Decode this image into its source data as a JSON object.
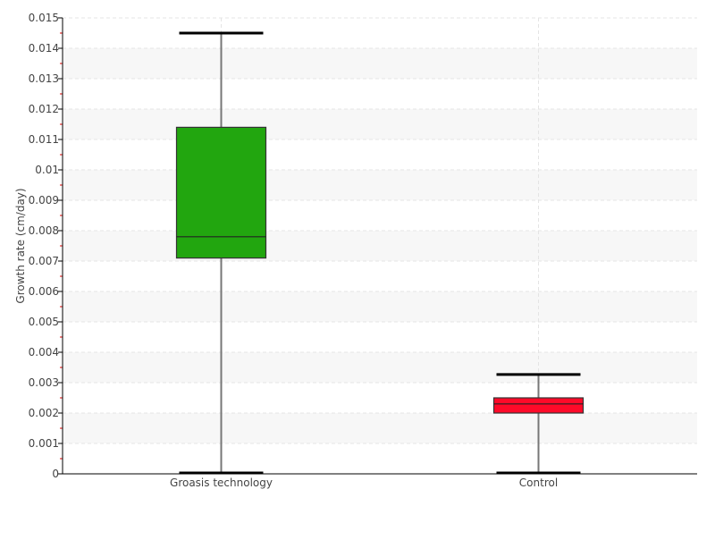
{
  "chart_data": {
    "type": "boxplot",
    "title": "",
    "xlabel": "",
    "ylabel": "Growth rate (cm/day)",
    "ylim": [
      0,
      0.015
    ],
    "yticks": [
      "0",
      "0.001",
      "0.002",
      "0.003",
      "0.004",
      "0.005",
      "0.006",
      "0.007",
      "0.008",
      "0.009",
      "0.01",
      "0.011",
      "0.012",
      "0.013",
      "0.014",
      "0.015"
    ],
    "grid": true,
    "categories": [
      "Groasis technology",
      "Control"
    ],
    "boxes": [
      {
        "category": "Groasis technology",
        "min": 0,
        "q1": 0.0071,
        "median": 0.0078,
        "q3": 0.0114,
        "max": 0.0145,
        "color": "#22a60f"
      },
      {
        "category": "Control",
        "min": 0,
        "q1": 0.002,
        "median": 0.0023,
        "q3": 0.0025,
        "max": 0.00327,
        "color": "#ff0a29"
      }
    ]
  }
}
